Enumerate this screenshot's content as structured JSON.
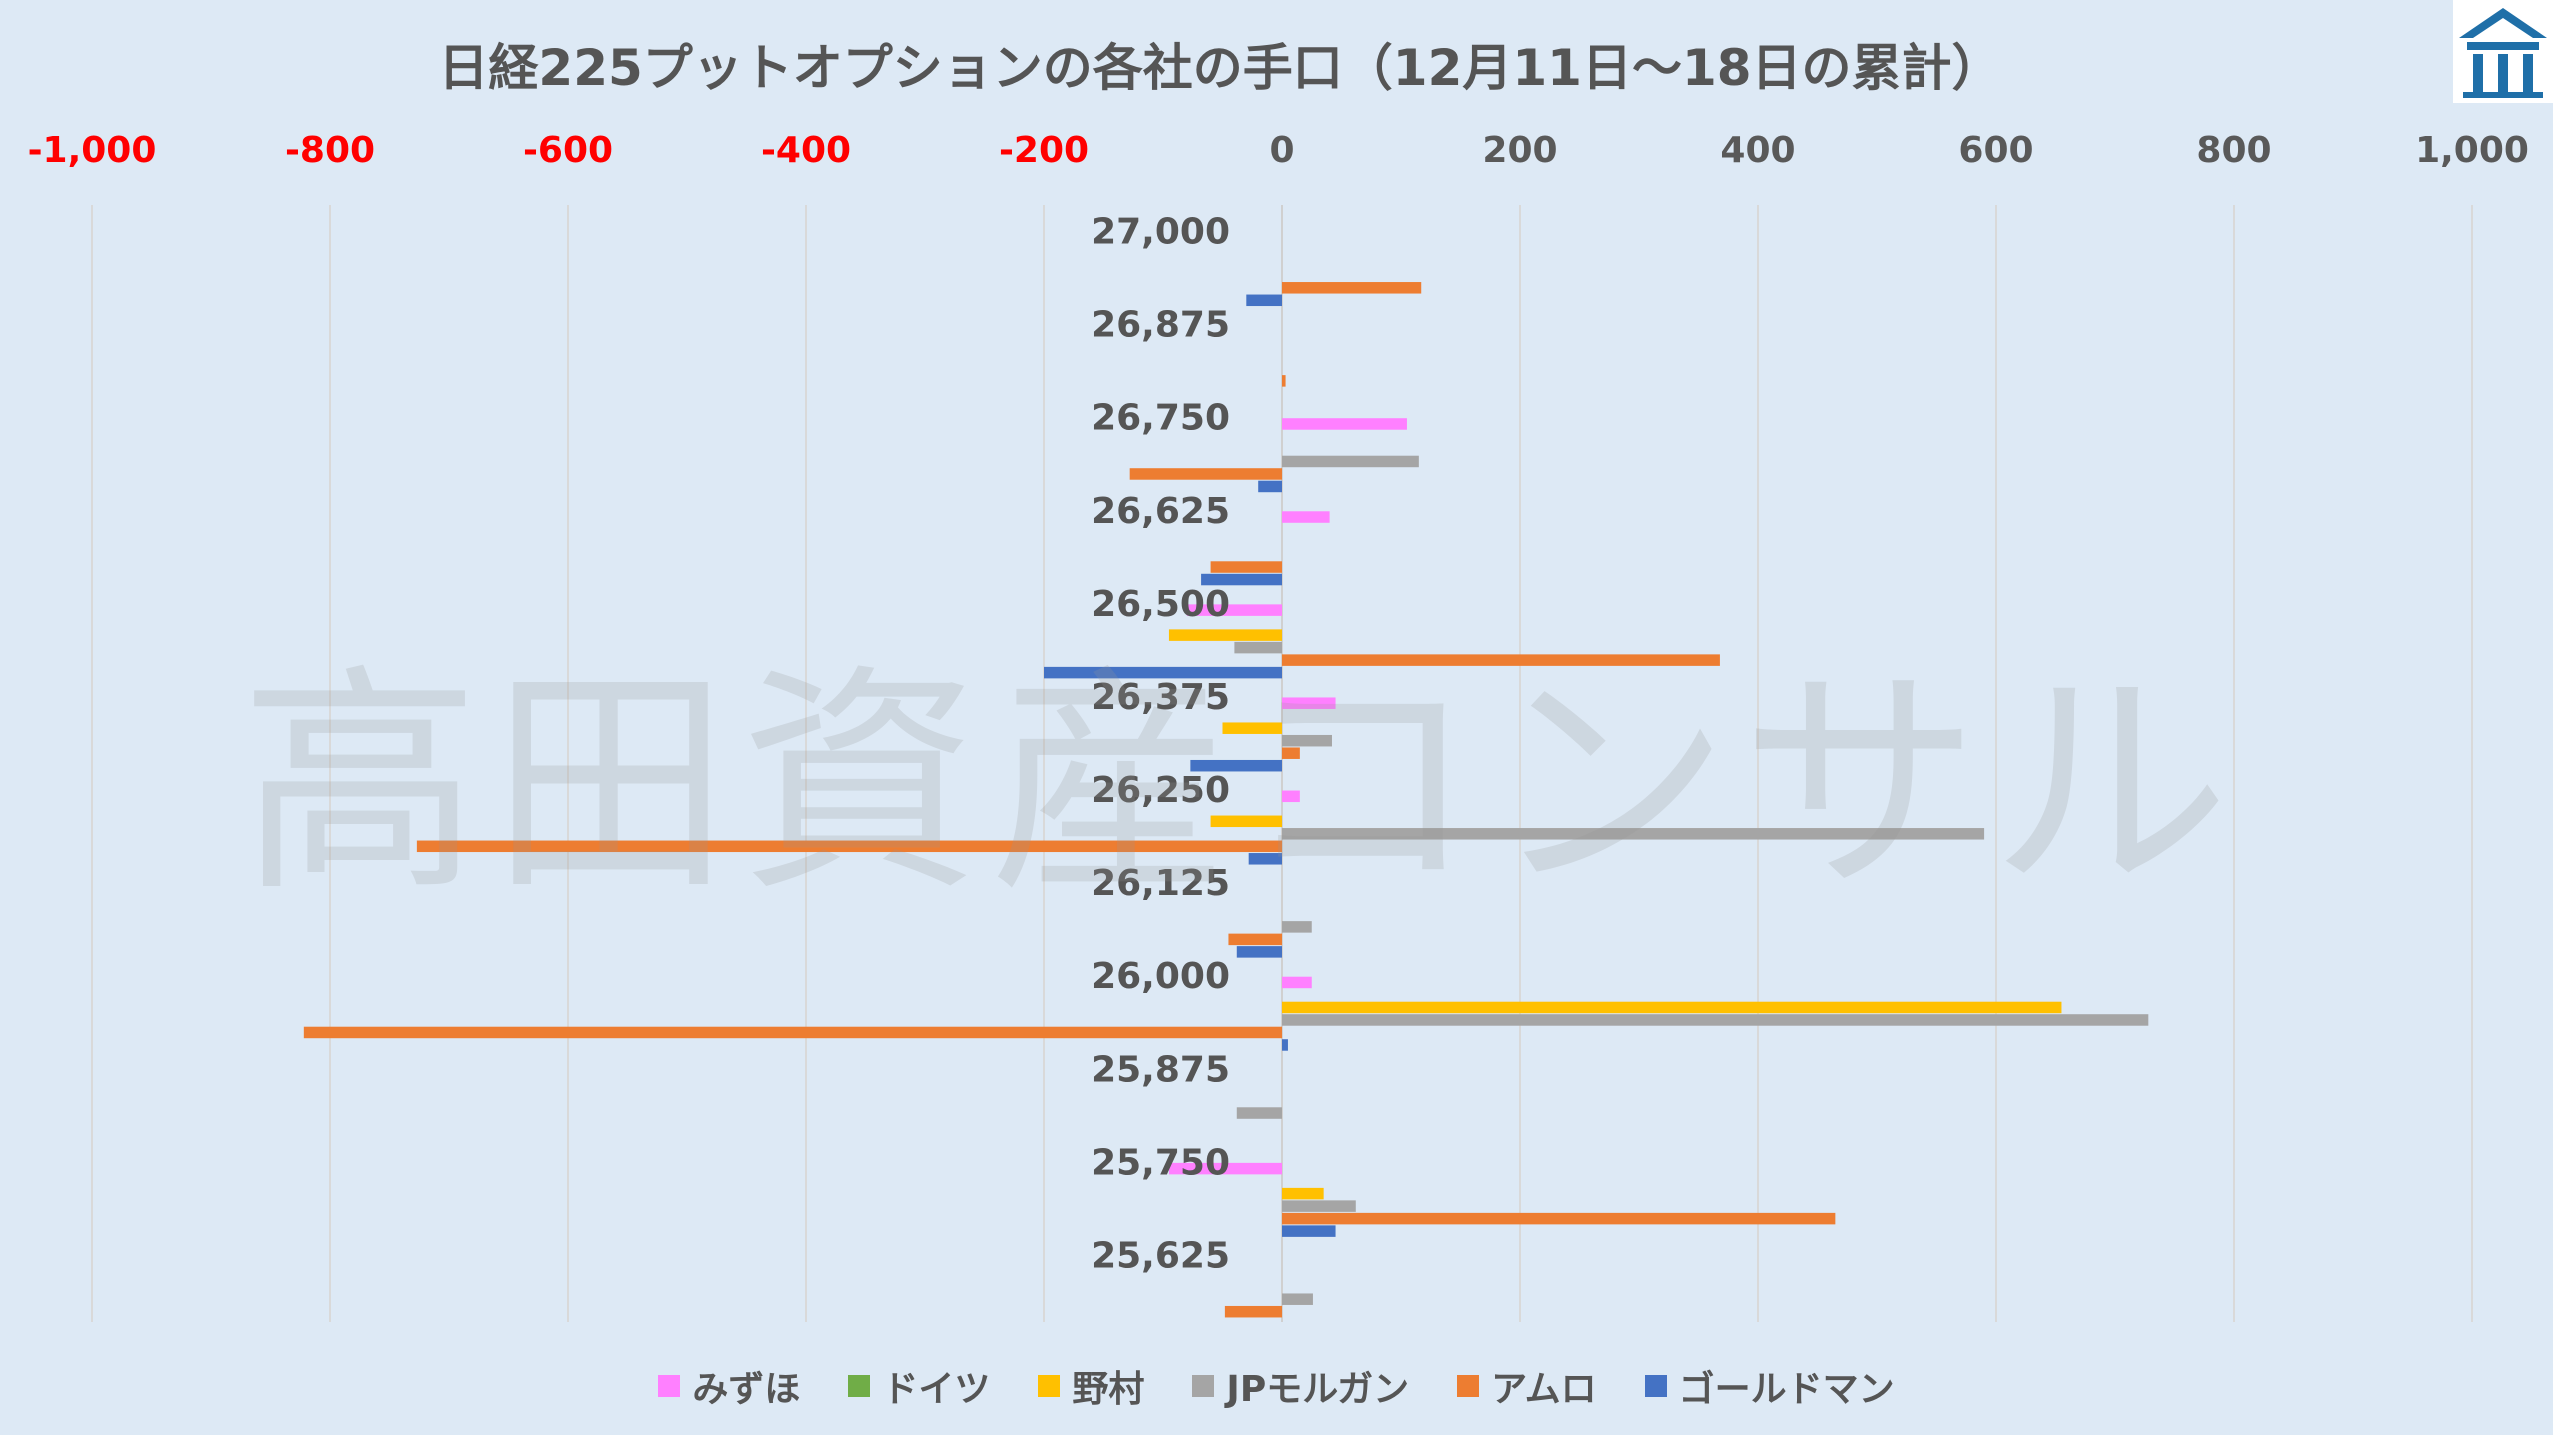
{
  "chart_data": {
    "type": "bar",
    "orientation": "horizontal",
    "title": "日経225プットオプションの各社の手口（12月11日〜18日の累計）",
    "categories": [
      "27,000",
      "26,875",
      "26,750",
      "26,625",
      "26,500",
      "26,375",
      "26,250",
      "26,125",
      "26,000",
      "25,875",
      "25,750",
      "25,625"
    ],
    "xlim": [
      -1000,
      1000
    ],
    "x_ticks": [
      {
        "value": -1000,
        "label": "-1,000"
      },
      {
        "value": -800,
        "label": "-800"
      },
      {
        "value": -600,
        "label": "-600"
      },
      {
        "value": -400,
        "label": "-400"
      },
      {
        "value": -200,
        "label": "-200"
      },
      {
        "value": 0,
        "label": "0"
      },
      {
        "value": 200,
        "label": "200"
      },
      {
        "value": 400,
        "label": "400"
      },
      {
        "value": 600,
        "label": "600"
      },
      {
        "value": 800,
        "label": "800"
      },
      {
        "value": 1000,
        "label": "1,000"
      }
    ],
    "negative_tick_color": "#ff0000",
    "positive_tick_color": "#595959",
    "grid": "vertical",
    "legend_position": "bottom",
    "series": [
      {
        "name": "みずほ",
        "color": "#ff80ff",
        "values": [
          0,
          0,
          105,
          40,
          -80,
          45,
          15,
          0,
          25,
          0,
          -95,
          0
        ]
      },
      {
        "name": "ドイツ",
        "color": "#70ad47",
        "values": [
          0,
          0,
          0,
          0,
          0,
          0,
          0,
          0,
          0,
          0,
          0,
          0
        ]
      },
      {
        "name": "野村",
        "color": "#ffc000",
        "values": [
          0,
          0,
          0,
          0,
          -95,
          -50,
          -60,
          0,
          655,
          0,
          35,
          0
        ]
      },
      {
        "name": "JPモルガン",
        "color": "#a5a5a5",
        "values": [
          0,
          0,
          115,
          0,
          -40,
          42,
          590,
          25,
          728,
          -38,
          62,
          26
        ]
      },
      {
        "name": "アムロ",
        "color": "#ed7d31",
        "values": [
          117,
          3,
          -128,
          -60,
          368,
          15,
          -727,
          -45,
          -822,
          0,
          465,
          -48
        ]
      },
      {
        "name": "ゴールドマン",
        "color": "#4472c4",
        "values": [
          -30,
          0,
          -20,
          -68,
          -200,
          -77,
          -28,
          -38,
          5,
          0,
          45,
          0
        ]
      }
    ]
  },
  "watermark": "高田資産コンサル"
}
